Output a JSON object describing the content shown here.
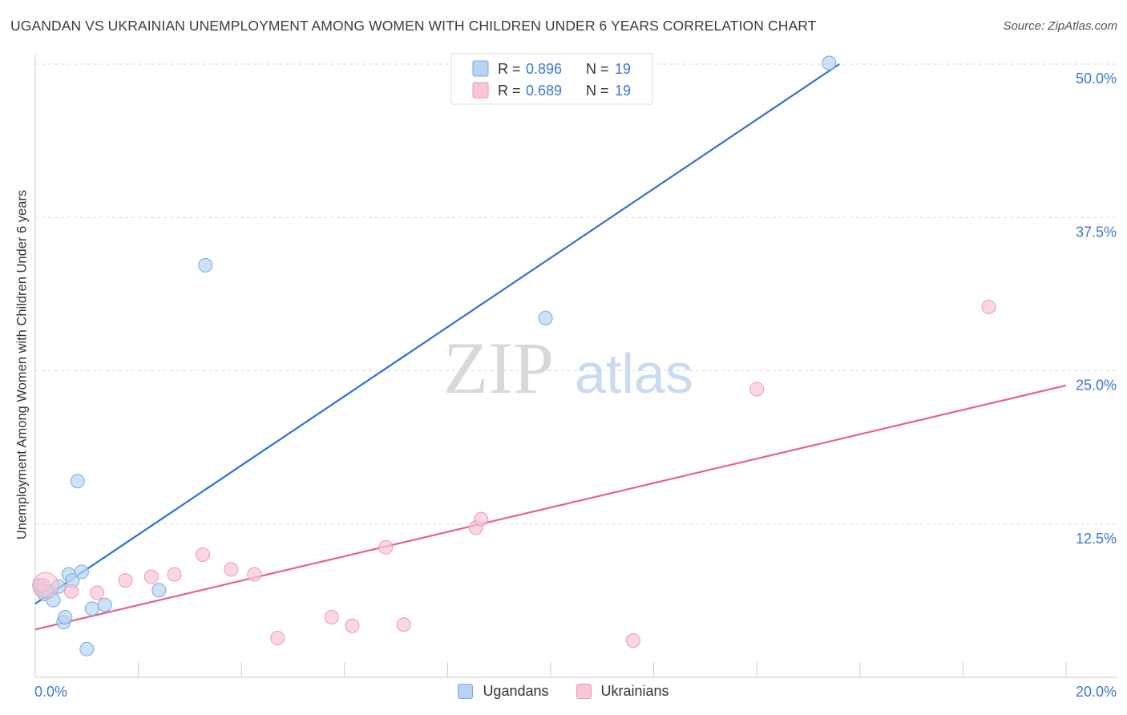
{
  "header": {
    "title": "UGANDAN VS UKRAINIAN UNEMPLOYMENT AMONG WOMEN WITH CHILDREN UNDER 6 YEARS CORRELATION CHART",
    "source": "Source: ZipAtlas.com"
  },
  "watermark": {
    "zip": "ZIP",
    "atlas": "atlas"
  },
  "colors": {
    "ugandans_fill": "#b8d4f4",
    "ugandans_stroke": "#7aa9de",
    "ugandans_line": "#2c73d2",
    "ukrainians_fill": "#f8c6d4",
    "ukrainians_stroke": "#eb9ab3",
    "ukrainians_line": "#e8608f",
    "value_text": "#3b78d0",
    "grid": "#d9d9d9"
  },
  "legend": {
    "rows": [
      {
        "r_label": "R =",
        "r_value": "0.896",
        "n_label": "N =",
        "n_value": "19"
      },
      {
        "r_label": "R =",
        "r_value": "0.689",
        "n_label": "N =",
        "n_value": "19"
      }
    ]
  },
  "chart_data": {
    "type": "scatter",
    "title": "UGANDAN VS UKRAINIAN UNEMPLOYMENT AMONG WOMEN WITH CHILDREN UNDER 6 YEARS CORRELATION CHART",
    "xlabel": "",
    "ylabel": "Unemployment Among Women with Children Under 6 years",
    "xlim": [
      0,
      20
    ],
    "ylim": [
      0,
      50
    ],
    "x_tick_labels": [
      "0.0%",
      "20.0%"
    ],
    "y_ticks": [
      12.5,
      25.0,
      37.5,
      50.0
    ],
    "y_tick_labels": [
      "12.5%",
      "25.0%",
      "37.5%",
      "50.0%"
    ],
    "grid": true,
    "legend_position": "top-center",
    "series": [
      {
        "name": "Ugandans",
        "r": 0.896,
        "n": 19,
        "points": [
          {
            "x": 0.12,
            "y": 7.2
          },
          {
            "x": 0.18,
            "y": 6.8
          },
          {
            "x": 0.25,
            "y": 7.0
          },
          {
            "x": 0.35,
            "y": 6.3
          },
          {
            "x": 0.45,
            "y": 7.4
          },
          {
            "x": 0.55,
            "y": 4.5
          },
          {
            "x": 0.58,
            "y": 4.9
          },
          {
            "x": 0.65,
            "y": 8.4
          },
          {
            "x": 0.72,
            "y": 7.9
          },
          {
            "x": 0.82,
            "y": 16.0
          },
          {
            "x": 0.9,
            "y": 8.6
          },
          {
            "x": 1.0,
            "y": 2.3
          },
          {
            "x": 1.1,
            "y": 5.6
          },
          {
            "x": 1.35,
            "y": 5.9
          },
          {
            "x": 2.4,
            "y": 7.1
          },
          {
            "x": 3.3,
            "y": 33.6
          },
          {
            "x": 9.9,
            "y": 29.3
          },
          {
            "x": 15.4,
            "y": 50.1
          },
          {
            "x": 0.08,
            "y": 7.5
          }
        ],
        "trend": {
          "x": [
            0,
            15.6
          ],
          "y": [
            6.0,
            50.0
          ]
        }
      },
      {
        "name": "Ukrainians",
        "r": 0.689,
        "n": 19,
        "points": [
          {
            "x": 0.15,
            "y": 7.5
          },
          {
            "x": 0.7,
            "y": 7.0
          },
          {
            "x": 1.2,
            "y": 6.9
          },
          {
            "x": 1.75,
            "y": 7.9
          },
          {
            "x": 2.25,
            "y": 8.2
          },
          {
            "x": 2.7,
            "y": 8.4
          },
          {
            "x": 3.25,
            "y": 10.0
          },
          {
            "x": 3.8,
            "y": 8.8
          },
          {
            "x": 4.25,
            "y": 8.4
          },
          {
            "x": 4.7,
            "y": 3.2
          },
          {
            "x": 5.75,
            "y": 4.9
          },
          {
            "x": 6.15,
            "y": 4.2
          },
          {
            "x": 6.8,
            "y": 10.6
          },
          {
            "x": 7.15,
            "y": 4.3
          },
          {
            "x": 8.55,
            "y": 12.2
          },
          {
            "x": 8.65,
            "y": 12.9
          },
          {
            "x": 11.6,
            "y": 3.0
          },
          {
            "x": 14.0,
            "y": 23.5
          },
          {
            "x": 18.5,
            "y": 30.2
          }
        ],
        "trend": {
          "x": [
            0,
            20
          ],
          "y": [
            3.9,
            23.8
          ]
        }
      }
    ]
  }
}
